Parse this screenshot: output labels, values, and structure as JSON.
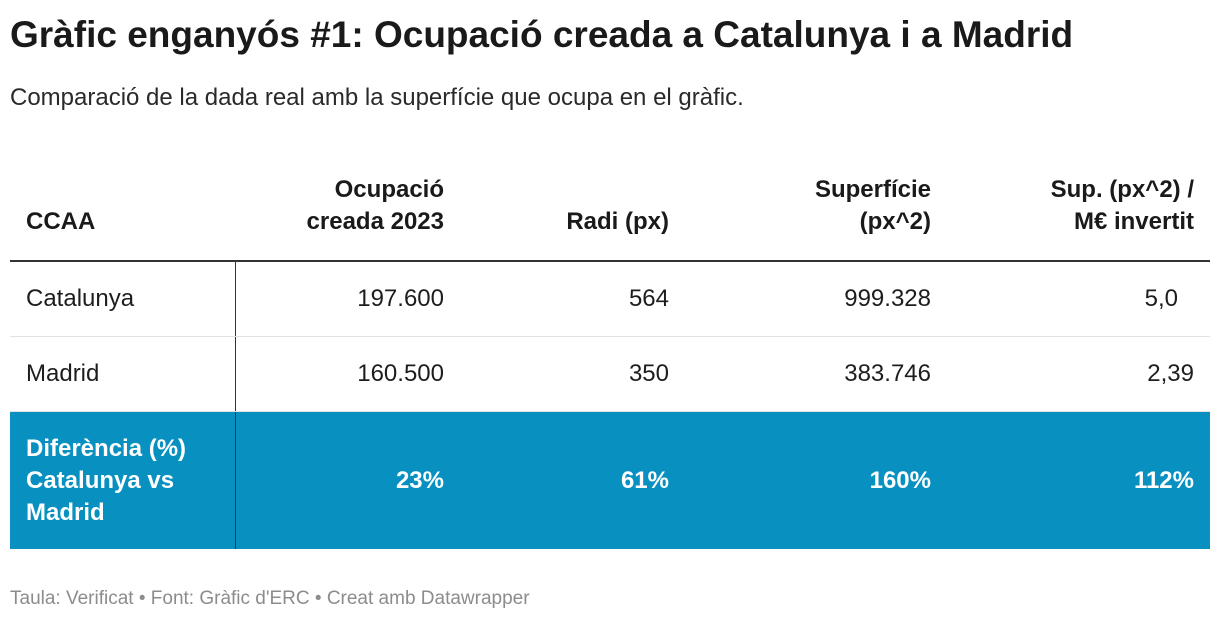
{
  "title": "Gràfic enganyós #1: Ocupació creada a Catalunya i a Madrid",
  "subtitle": "Comparació de la dada real amb la superfície que ocupa en el gràfic.",
  "chart_data": {
    "type": "table",
    "columns": [
      [
        "CCAA"
      ],
      [
        "Ocupació",
        "creada 2023"
      ],
      [
        "Radi (px)"
      ],
      [
        "Superfície",
        "(px^2)"
      ],
      [
        "Sup. (px^2) /",
        "M€ invertit"
      ]
    ],
    "rows": [
      [
        "Catalunya",
        "197.600",
        "564",
        "999.328",
        "5,0"
      ],
      [
        "Madrid",
        "160.500",
        "350",
        "383.746",
        "2,39"
      ]
    ],
    "highlight_row": {
      "label_lines": [
        "Diferència (%)",
        "Catalunya vs",
        "Madrid"
      ],
      "values": [
        "23%",
        "61%",
        "160%",
        "112%"
      ]
    }
  },
  "colors": {
    "highlight_background": "#0891c0",
    "highlight_text": "#ffffff",
    "footer_text": "#8c8c8c"
  },
  "footer": "Taula: Verificat • Font: Gràfic d'ERC • Creat amb Datawrapper"
}
